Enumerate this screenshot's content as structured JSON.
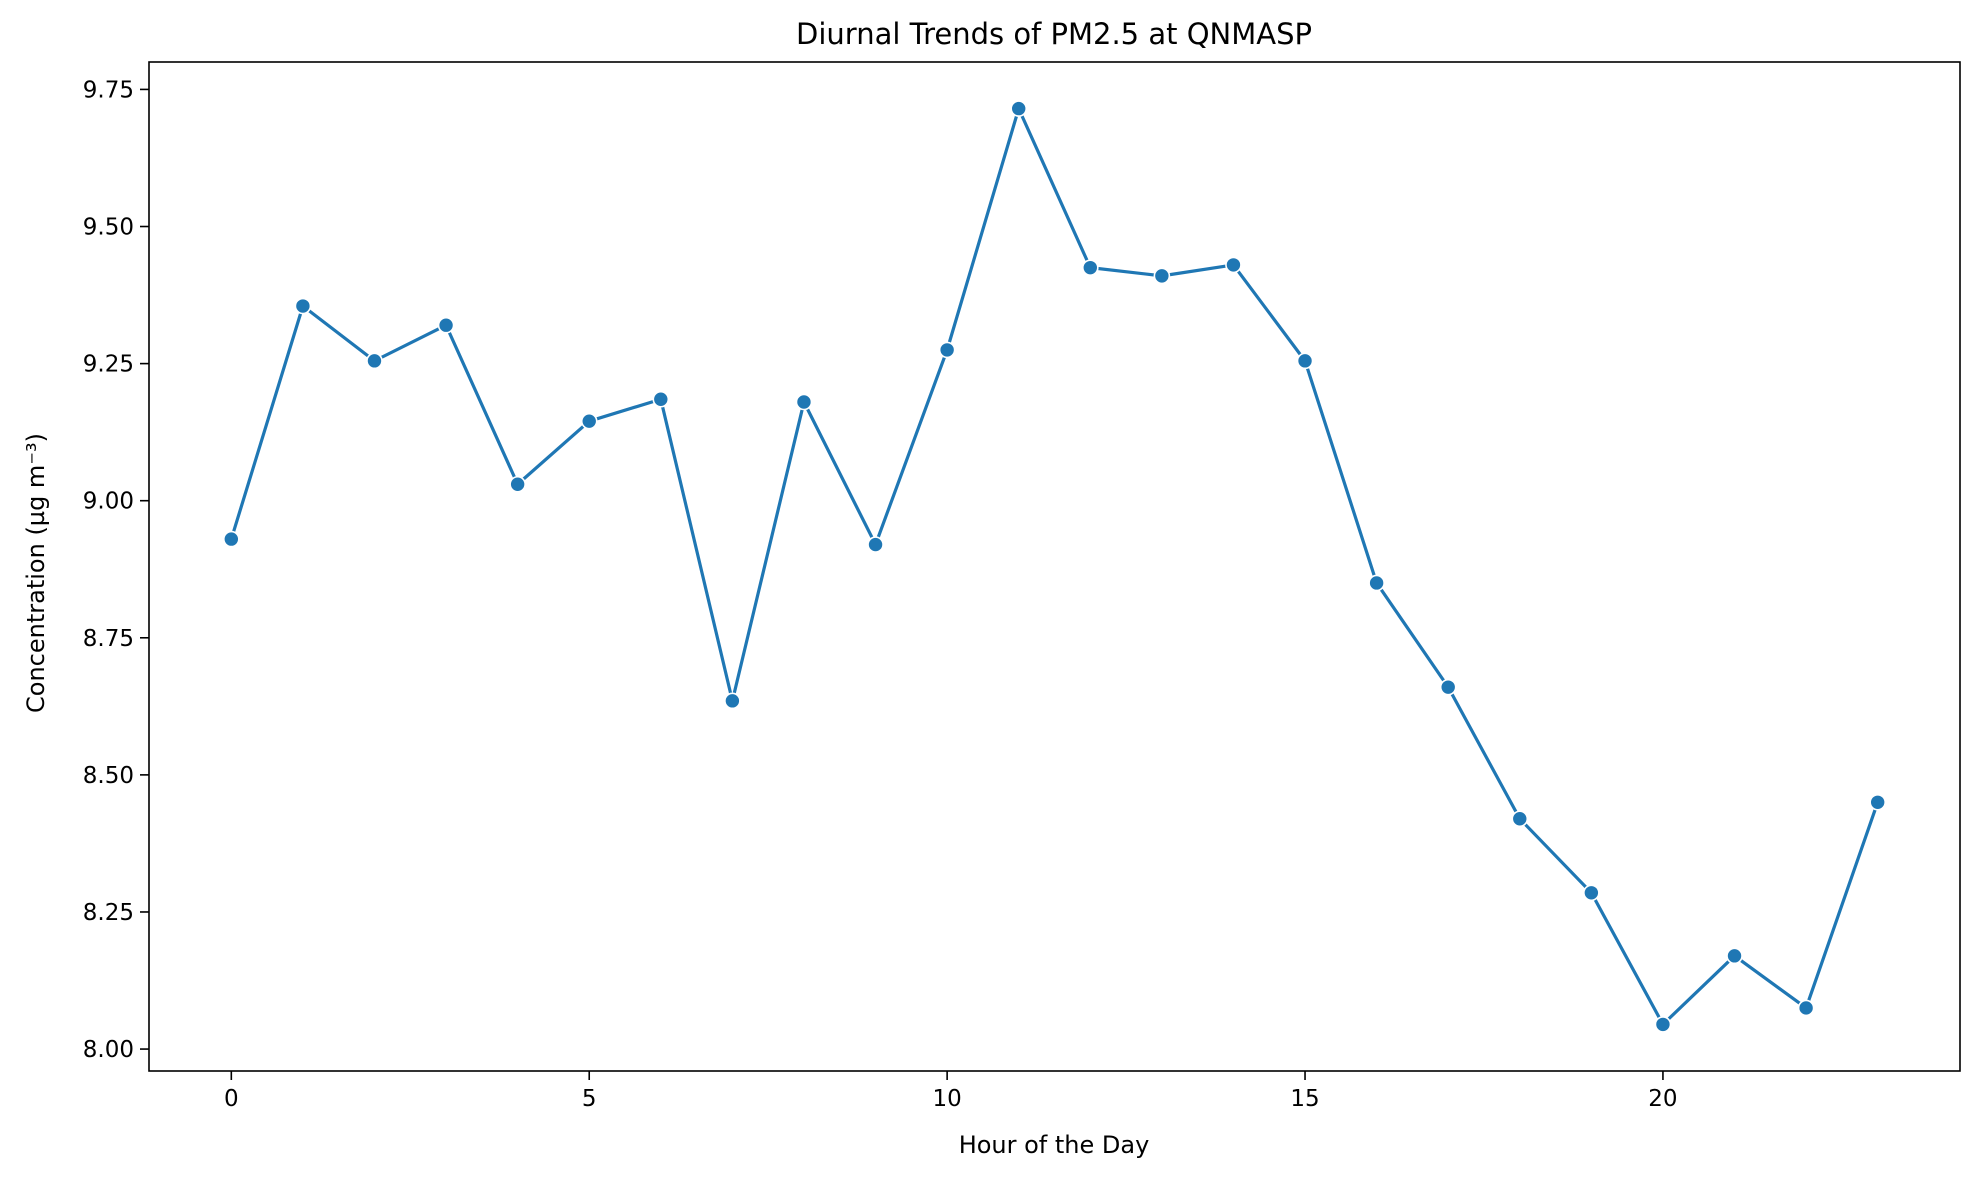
{
  "chart_data": {
    "type": "line",
    "title": "Diurnal Trends of PM2.5 at QNMASP",
    "xlabel": "Hour of the Day",
    "ylabel": "Concentration (µg m⁻³)",
    "xlim": [
      -1.15,
      24.15
    ],
    "ylim": [
      7.96,
      9.8
    ],
    "xticks": [
      0,
      5,
      10,
      15,
      20
    ],
    "xtick_labels": [
      "0",
      "5",
      "10",
      "15",
      "20"
    ],
    "yticks": [
      8.0,
      8.25,
      8.5,
      8.75,
      9.0,
      9.25,
      9.5,
      9.75
    ],
    "ytick_labels": [
      "8.00",
      "8.25",
      "8.50",
      "8.75",
      "9.00",
      "9.25",
      "9.50",
      "9.75"
    ],
    "grid": false,
    "x": [
      0,
      1,
      2,
      3,
      4,
      5,
      6,
      7,
      8,
      9,
      10,
      11,
      12,
      13,
      14,
      15,
      16,
      17,
      18,
      19,
      20,
      21,
      22,
      23
    ],
    "series": [
      {
        "color": "#1f77b4",
        "marker": "circle",
        "values": [
          8.93,
          9.355,
          9.255,
          9.32,
          9.03,
          9.145,
          9.185,
          8.635,
          9.18,
          8.92,
          9.275,
          9.715,
          9.425,
          9.41,
          9.43,
          9.255,
          8.85,
          8.66,
          8.42,
          8.285,
          8.045,
          8.17,
          8.075,
          8.45
        ]
      }
    ]
  }
}
